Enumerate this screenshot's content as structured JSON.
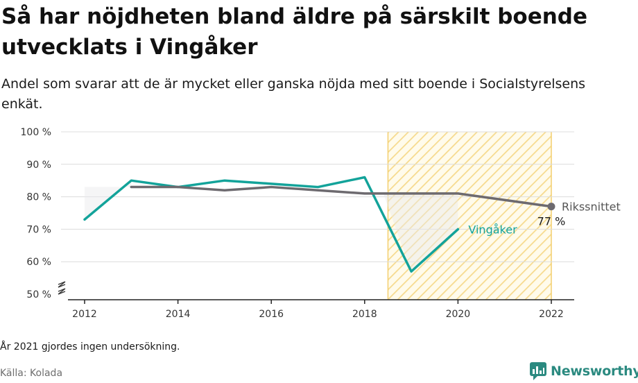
{
  "header": {
    "title": "Så har nöjdheten bland äldre på särskilt boende utvecklats i Vingåker",
    "subtitle": "Andel som svarar att de är mycket eller ganska nöjda med sitt boende i Socialstyrelsens enkät."
  },
  "footer": {
    "note": "År 2021 gjordes ingen undersökning.",
    "source": "Källa: Kolada",
    "brand": "Newsworthy"
  },
  "colors": {
    "vingaker": "#13a39a",
    "riksnittet": "#6d6a6f",
    "highlight_hatch": "#f3cf6e",
    "grid": "#dcdcdc",
    "brand": "#2b8a80"
  },
  "chart_data": {
    "type": "line",
    "xlim": [
      2012,
      2022
    ],
    "ylim": [
      50,
      100
    ],
    "x_ticks": [
      2012,
      2014,
      2016,
      2018,
      2020,
      2022
    ],
    "y_ticks": [
      50,
      60,
      70,
      80,
      90,
      100
    ],
    "y_tick_labels": [
      "50 %",
      "60 %",
      "70 %",
      "80 %",
      "90 %",
      "100 %"
    ],
    "y_axis_break": true,
    "grid": true,
    "highlight_range": [
      2018.5,
      2022
    ],
    "series": [
      {
        "name": "Vingåker",
        "color_key": "vingaker",
        "x": [
          2012,
          2013,
          2014,
          2015,
          2016,
          2017,
          2018,
          2019,
          2020
        ],
        "y": [
          73,
          85,
          83,
          85,
          84,
          83,
          86,
          57,
          70
        ]
      },
      {
        "name": "Rikssnittet",
        "color_key": "riksnittet",
        "x": [
          2013,
          2014,
          2015,
          2016,
          2017,
          2018,
          2019,
          2020,
          2022
        ],
        "y": [
          83,
          83,
          82,
          83,
          82,
          81,
          81,
          81,
          77
        ],
        "end_label": "77 %"
      }
    ]
  }
}
